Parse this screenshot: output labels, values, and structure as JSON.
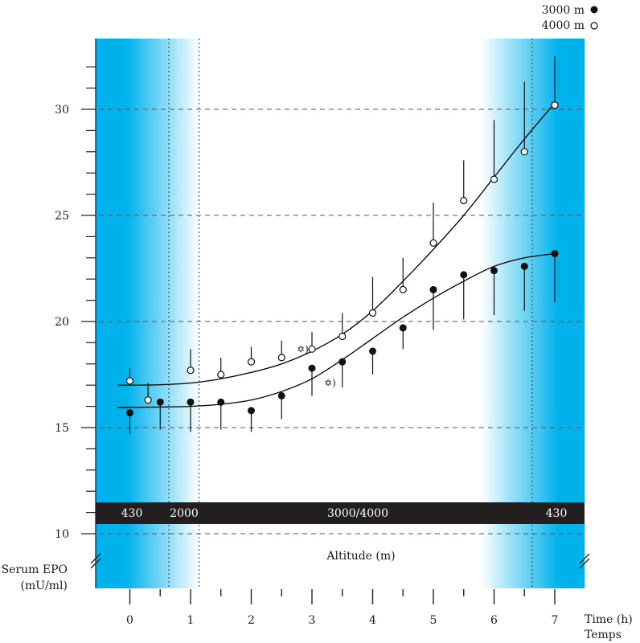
{
  "chart_data": {
    "type": "scatter",
    "xlabel": "Time (h)",
    "xlabel_alt": "Temps",
    "ylabel_line1": "Serum EPO",
    "ylabel_line2": "(mU/ml)",
    "altitude_label": "Altitude (m)",
    "x_ticks": [
      0,
      1,
      2,
      3,
      4,
      5,
      6,
      7
    ],
    "y_ticks": [
      10,
      15,
      20,
      25,
      30
    ],
    "xlim": [
      -0.55,
      7.5
    ],
    "ylim": [
      9.3,
      33.2
    ],
    "grid": "horizontal dashed at major y ticks",
    "legend": "top-right",
    "altitude_segments": [
      "430",
      "2000",
      "3000/4000",
      "430"
    ],
    "shading": {
      "color": "#00b2ec",
      "left_band_x": [
        -0.55,
        1.15
      ],
      "right_band_x": [
        5.85,
        7.5
      ],
      "dotted_lines_x": [
        0.65,
        1.15,
        6.65
      ]
    },
    "series": [
      {
        "name": "3000 m",
        "marker": "filled",
        "x": [
          0,
          0.5,
          1,
          1.5,
          2,
          2.5,
          3,
          3.5,
          4,
          4.5,
          5,
          5.5,
          6,
          6.5,
          7
        ],
        "y": [
          15.7,
          16.2,
          16.2,
          16.2,
          15.8,
          16.5,
          17.8,
          18.1,
          18.6,
          19.7,
          21.5,
          22.2,
          22.4,
          22.6,
          23.2
        ],
        "err_down": [
          1.0,
          1.3,
          1.4,
          1.3,
          1.0,
          1.1,
          1.3,
          1.2,
          1.1,
          1.0,
          1.9,
          2.1,
          2.1,
          2.1,
          2.3
        ]
      },
      {
        "name": "4000 m",
        "marker": "open",
        "x": [
          0,
          0.3,
          1,
          1.5,
          2,
          2.5,
          3,
          3.5,
          4,
          4.5,
          5,
          5.5,
          6,
          6.5,
          7
        ],
        "y": [
          17.2,
          16.3,
          17.7,
          17.5,
          18.1,
          18.3,
          18.7,
          19.3,
          20.4,
          21.5,
          23.7,
          25.7,
          26.7,
          28.0,
          30.2
        ],
        "err_up": [
          0.6,
          0.8,
          1.0,
          0.8,
          0.7,
          0.8,
          0.8,
          1.1,
          1.7,
          1.5,
          1.9,
          1.9,
          2.8,
          3.3,
          2.3
        ]
      }
    ],
    "fit_curves": [
      {
        "series": "3000 m",
        "x": [
          -0.2,
          0,
          0.5,
          1,
          1.5,
          2,
          2.5,
          3,
          3.5,
          4,
          4.5,
          5,
          5.5,
          6,
          6.5,
          7
        ],
        "y": [
          15.95,
          15.95,
          15.97,
          16.0,
          16.1,
          16.3,
          16.7,
          17.3,
          18.2,
          19.2,
          20.2,
          21.1,
          21.9,
          22.6,
          23.0,
          23.2
        ]
      },
      {
        "series": "4000 m",
        "x": [
          -0.2,
          0,
          0.5,
          1,
          1.5,
          2,
          2.5,
          3,
          3.5,
          4,
          4.5,
          5,
          5.5,
          6,
          6.5,
          7
        ],
        "y": [
          17.0,
          17.0,
          17.02,
          17.1,
          17.3,
          17.6,
          18.0,
          18.6,
          19.4,
          20.5,
          21.9,
          23.4,
          25.0,
          26.8,
          28.6,
          30.3
        ]
      }
    ],
    "annotations": [
      {
        "text": "✡)",
        "x": 2.75,
        "y": 18.7
      },
      {
        "text": "✡)",
        "x": 3.2,
        "y": 17.1
      }
    ]
  }
}
